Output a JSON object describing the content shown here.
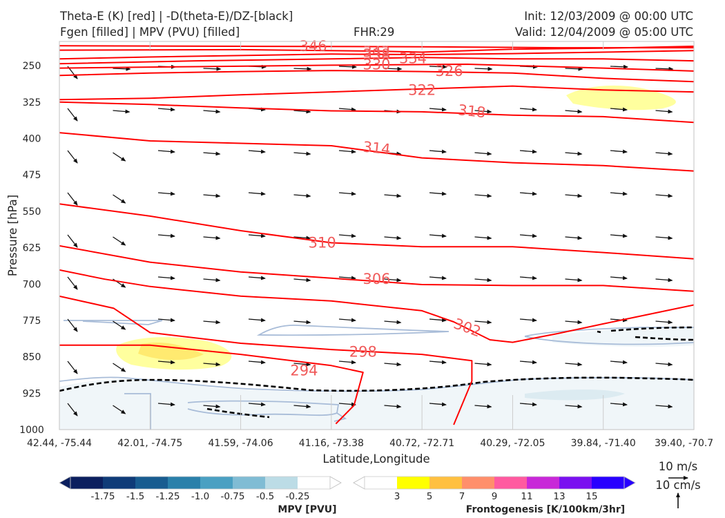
{
  "header": {
    "title_line1": "Theta-E (K) [red] | -D(theta-E)/DZ-[black]",
    "title_line2": "Fgen [filled] | MPV (PVU) [filled]",
    "fhr": "FHR:29",
    "init": "Init: 12/03/2009 @ 00:00 UTC",
    "valid": "Valid: 12/04/2009 @ 05:00 UTC"
  },
  "chart_data": {
    "type": "cross-section",
    "title": "Theta-E (K) [red] | -D(theta-E)/DZ-[black] | Fgen [filled] | MPV (PVU) [filled]",
    "xlabel": "Latitude,Longitude",
    "ylabel": "Pressure [hPa]",
    "x_ticks": [
      "42.44, -75.44",
      "42.01, -74.75",
      "41.59, -74.06",
      "41.16, -73.38",
      "40.72, -72.71",
      "40.29, -72.05",
      "39.84, -71.40",
      "39.40, -70.7"
    ],
    "y_ticks": [
      250,
      325,
      400,
      475,
      550,
      625,
      700,
      775,
      850,
      925,
      1000
    ],
    "ylim": [
      1000,
      200
    ],
    "theta_e_contours": [
      {
        "value": 346,
        "label": "346",
        "points": [
          [
            0,
            209
          ],
          [
            2,
            210
          ],
          [
            4,
            211
          ],
          [
            5.5,
            213
          ],
          [
            7,
            213
          ]
        ]
      },
      {
        "value": 342,
        "label": "342",
        "points": [
          [
            0,
            218
          ],
          [
            2,
            217
          ],
          [
            3.5,
            220
          ],
          [
            4,
            222
          ],
          [
            5,
            216
          ],
          [
            6,
            214
          ],
          [
            7,
            210
          ]
        ]
      },
      {
        "value": 338,
        "label": "338",
        "points": [
          [
            0,
            236
          ],
          [
            1,
            232
          ],
          [
            2,
            229
          ],
          [
            3,
            226
          ],
          [
            4,
            227
          ],
          [
            5,
            225
          ],
          [
            6,
            222
          ],
          [
            7,
            219
          ]
        ]
      },
      {
        "value": 334,
        "label": "334",
        "points": [
          [
            0,
            246
          ],
          [
            1.5,
            240
          ],
          [
            3,
            236
          ],
          [
            4,
            233
          ],
          [
            5,
            236
          ],
          [
            6,
            236
          ],
          [
            7,
            240
          ]
        ]
      },
      {
        "value": 330,
        "label": "330",
        "points": [
          [
            0,
            255
          ],
          [
            1.5,
            252
          ],
          [
            3,
            249
          ],
          [
            4.5,
            247
          ],
          [
            6,
            255
          ],
          [
            7,
            261
          ]
        ]
      },
      {
        "value": 326,
        "label": "326",
        "points": [
          [
            0,
            270
          ],
          [
            1,
            265
          ],
          [
            2,
            262
          ],
          [
            3,
            260
          ],
          [
            4,
            262
          ],
          [
            5,
            265
          ],
          [
            6,
            276
          ],
          [
            7,
            283
          ]
        ]
      },
      {
        "value": 322,
        "label": "322",
        "points": [
          [
            0,
            320
          ],
          [
            1,
            317
          ],
          [
            2,
            310
          ],
          [
            3,
            304
          ],
          [
            4,
            298
          ],
          [
            5,
            292
          ],
          [
            6,
            300
          ],
          [
            7,
            304
          ]
        ]
      },
      {
        "value": 318,
        "label": "318",
        "points": [
          [
            0,
            325
          ],
          [
            1,
            330
          ],
          [
            2,
            337
          ],
          [
            3,
            343
          ],
          [
            4,
            345
          ],
          [
            5,
            352
          ],
          [
            6,
            355
          ],
          [
            7,
            367
          ]
        ]
      },
      {
        "value": 314,
        "label": "314",
        "points": [
          [
            0,
            388
          ],
          [
            1,
            405
          ],
          [
            2,
            410
          ],
          [
            3,
            415
          ],
          [
            4,
            440
          ],
          [
            5,
            450
          ],
          [
            6,
            456
          ],
          [
            7,
            467
          ]
        ]
      },
      {
        "value": 310,
        "label": "310",
        "points": [
          [
            0,
            535
          ],
          [
            1,
            560
          ],
          [
            2,
            590
          ],
          [
            3,
            615
          ],
          [
            4,
            623
          ],
          [
            5,
            623
          ],
          [
            6,
            635
          ],
          [
            7,
            648
          ]
        ]
      },
      {
        "value": 306,
        "label": "306",
        "points": [
          [
            0,
            621
          ],
          [
            1,
            655
          ],
          [
            2,
            675
          ],
          [
            3,
            688
          ],
          [
            4,
            701
          ],
          [
            5,
            703
          ],
          [
            6,
            703
          ],
          [
            7,
            715
          ]
        ]
      },
      {
        "value": 302,
        "label": "302",
        "points": [
          [
            0,
            671
          ],
          [
            0.5,
            690
          ],
          [
            1,
            705
          ],
          [
            2,
            725
          ],
          [
            3,
            735
          ],
          [
            4,
            755
          ],
          [
            4.35,
            778
          ],
          [
            4.75,
            815
          ],
          [
            5,
            820
          ],
          [
            5.5,
            802
          ],
          [
            6,
            782
          ],
          [
            7,
            743
          ]
        ]
      },
      {
        "value": 298,
        "label": "298",
        "points": [
          [
            0,
            725
          ],
          [
            0.6,
            750
          ],
          [
            1,
            800
          ],
          [
            2,
            822
          ],
          [
            3,
            835
          ],
          [
            4,
            845
          ],
          [
            4.55,
            858
          ],
          [
            4.55,
            900
          ],
          [
            4.35,
            990
          ]
        ]
      },
      {
        "value": 294,
        "label": "294",
        "points": [
          [
            0,
            826
          ],
          [
            1,
            826
          ],
          [
            2,
            845
          ],
          [
            3,
            868
          ],
          [
            3.35,
            882
          ],
          [
            3.25,
            950
          ],
          [
            3.05,
            988
          ]
        ]
      }
    ],
    "mpv_pvu": {
      "colorbar_levels": [
        -1.75,
        -1.5,
        -1.25,
        -1.0,
        -0.75,
        -0.5,
        -0.25
      ],
      "title": "MPV [PVU]"
    },
    "frontogenesis": {
      "colorbar_levels": [
        3,
        5,
        7,
        9,
        11,
        13,
        15
      ],
      "title": "Frontogenesis [K/100km/3hr]"
    },
    "wind_key": {
      "horizontal": "10 m/s",
      "vertical": "10 cm/s"
    },
    "colors": {
      "theta_e": "#ff0000",
      "label": "#f05a5a",
      "mpv": "#a8bcd8",
      "fgen_yellow": "#ffff80"
    }
  },
  "colorbars": {
    "mpv_colors": [
      "#0b1f5e",
      "#0f3b78",
      "#185c90",
      "#2a80aa",
      "#4aa0c2",
      "#80bcd4",
      "#bcdce6",
      "#ffffff"
    ],
    "fgen_colors": [
      "#ffffff",
      "#ffff00",
      "#ffc040",
      "#ff8f6b",
      "#ff5aa0",
      "#c828d8",
      "#7a10f0",
      "#2800ff"
    ]
  }
}
